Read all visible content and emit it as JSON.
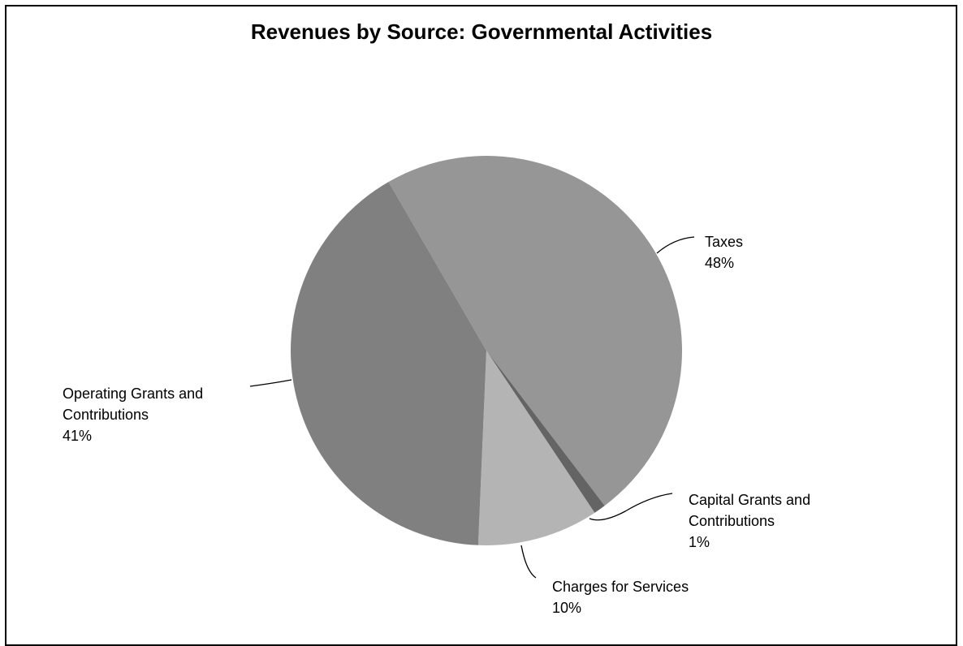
{
  "chart_data": {
    "type": "pie",
    "title": "Revenues by Source: Governmental Activities",
    "slices": [
      {
        "name": "Taxes",
        "name_lines": [
          "Taxes"
        ],
        "value": 48,
        "label": "48%",
        "color": "#969696"
      },
      {
        "name": "Capital Grants and Contributions",
        "name_lines": [
          "Capital Grants and",
          "Contributions"
        ],
        "value": 1,
        "label": "1%",
        "color": "#646464"
      },
      {
        "name": "Charges for Services",
        "name_lines": [
          "Charges for Services"
        ],
        "value": 10,
        "label": "10%",
        "color": "#b4b4b4"
      },
      {
        "name": "Operating Grants and Contributions",
        "name_lines": [
          "Operating Grants and",
          "Contributions"
        ],
        "value": 41,
        "label": "41%",
        "color": "#808080"
      }
    ],
    "legend": "none",
    "data_labels": "outside with leader lines"
  }
}
